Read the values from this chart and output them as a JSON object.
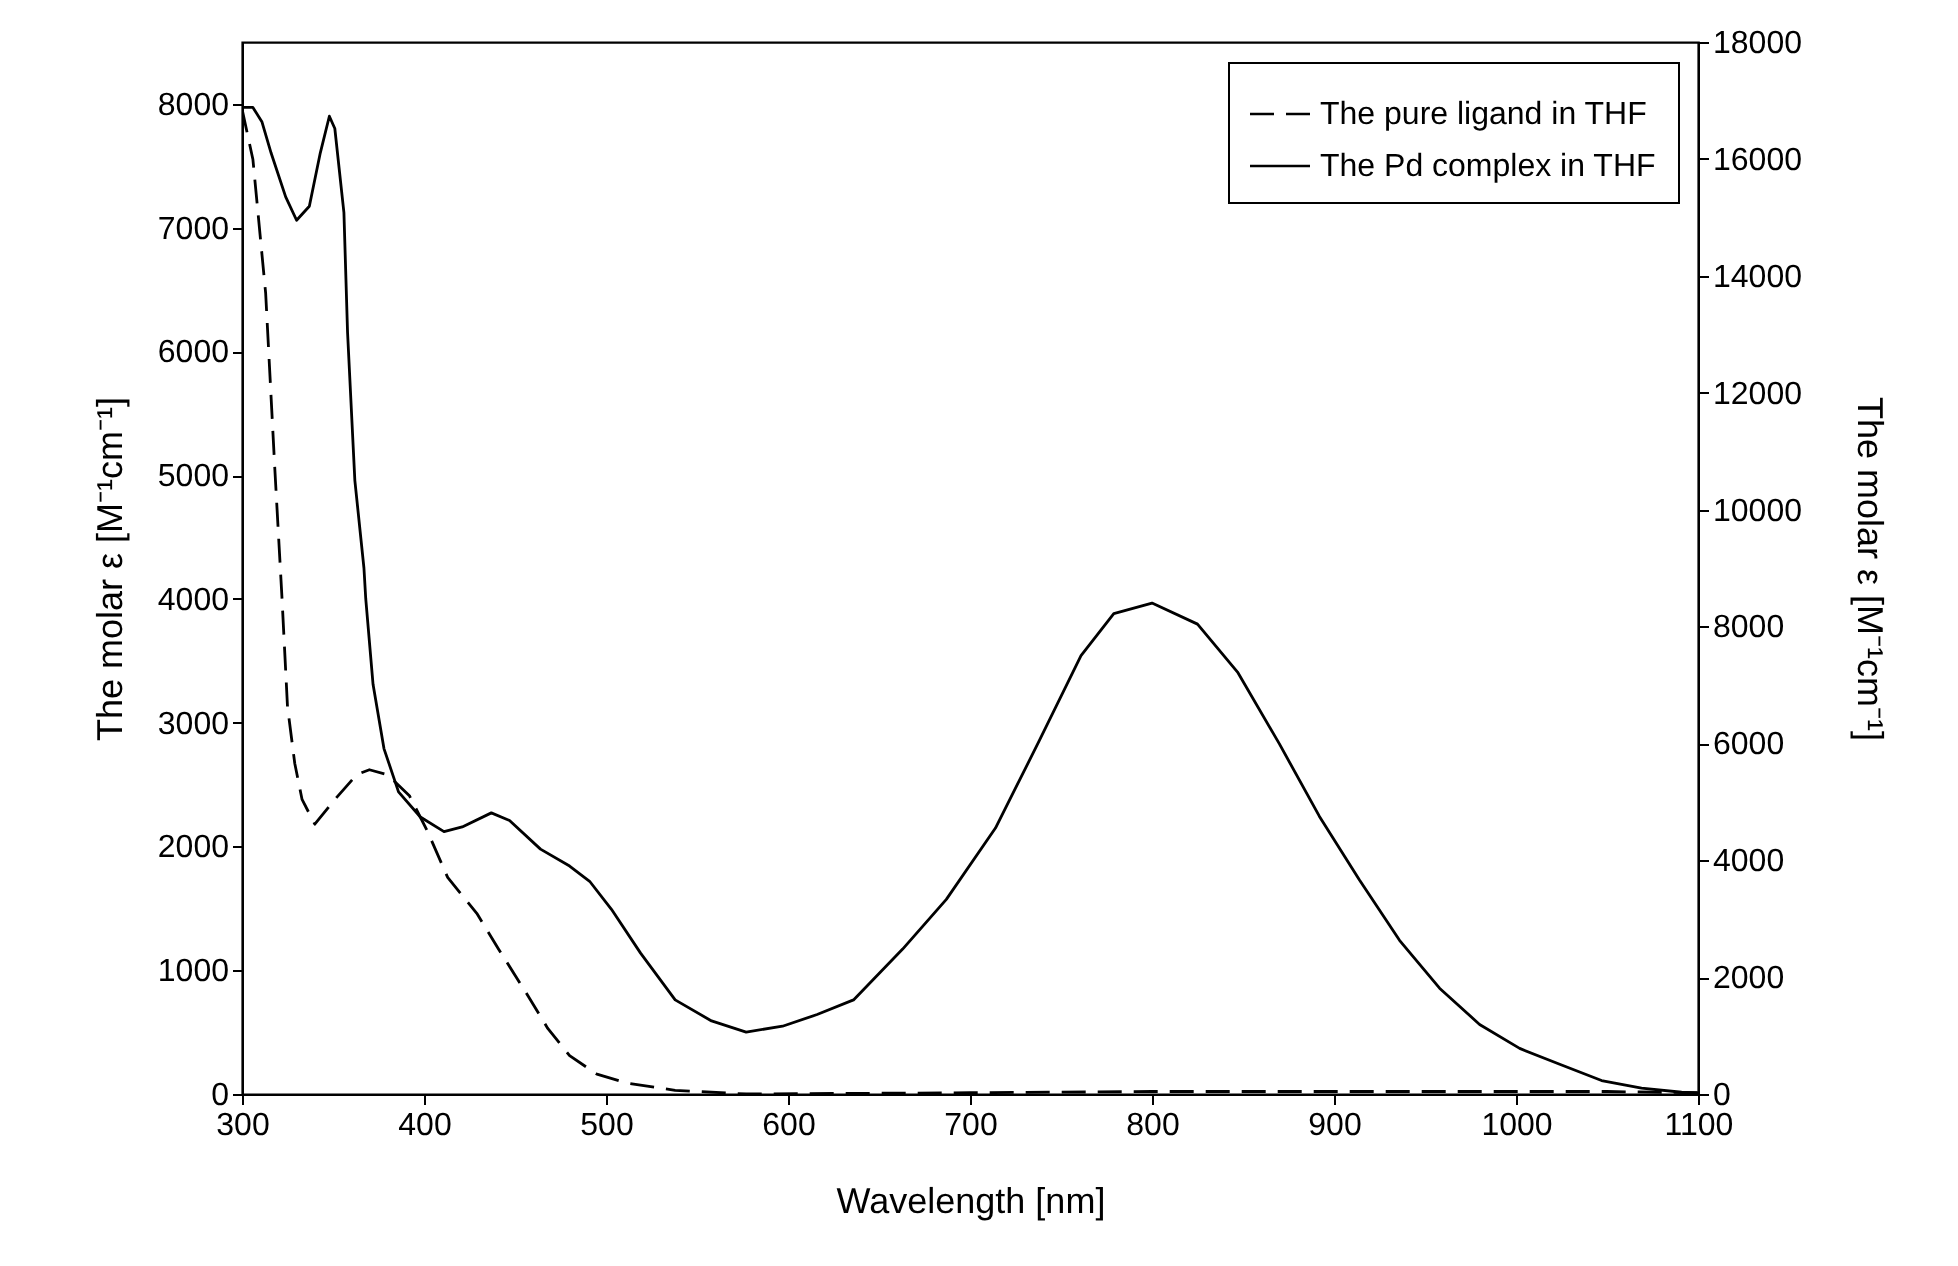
{
  "chart_data": {
    "type": "line",
    "xlabel": "Wavelength [nm]",
    "ylabel": "The molar ε [M⁻¹cm⁻¹]",
    "y2label": "The molar ε [M⁻¹cm⁻¹]",
    "xlim": [
      300,
      1100
    ],
    "xticks": [
      300,
      400,
      500,
      600,
      700,
      800,
      900,
      1000,
      1100
    ],
    "ylim": [
      0,
      8500
    ],
    "yticks": [
      0,
      1000,
      2000,
      3000,
      4000,
      5000,
      6000,
      7000,
      8000
    ],
    "y2lim": [
      0,
      18000
    ],
    "y2ticks": [
      0,
      2000,
      4000,
      6000,
      8000,
      10000,
      12000,
      14000,
      16000,
      18000
    ],
    "grid": false,
    "legend": "top right",
    "marker": "none",
    "series": [
      {
        "name": "The pure ligand in THF",
        "color": "#000000",
        "line_style": "dashed",
        "x": [
          300,
          306,
          313,
          318,
          322,
          325,
          329,
          333,
          340,
          351,
          363,
          370,
          380,
          392,
          402,
          413,
          429,
          441,
          456,
          468,
          480,
          495,
          511,
          538,
          577,
          700,
          800,
          900,
          1000,
          1050,
          1100
        ],
        "values": [
          7960,
          7550,
          6470,
          5060,
          4000,
          3130,
          2670,
          2380,
          2180,
          2380,
          2580,
          2620,
          2580,
          2410,
          2120,
          1750,
          1460,
          1170,
          820,
          530,
          310,
          160,
          90,
          30,
          0,
          10,
          20,
          20,
          20,
          20,
          10
        ]
      },
      {
        "name": "The Pd complex in THF",
        "color": "#000000",
        "line_style": "solid",
        "axis": "y2",
        "x": [
          301,
          306,
          311,
          316,
          324,
          330,
          337,
          343,
          348,
          351,
          356,
          358,
          362,
          367,
          368,
          372,
          378,
          386,
          398,
          411,
          421,
          437,
          447,
          464,
          480,
          491,
          503,
          519,
          538,
          558,
          577,
          597,
          616,
          636,
          663,
          687,
          714,
          738,
          761,
          779,
          800,
          825,
          847,
          870,
          892,
          914,
          936,
          958,
          980,
          1002,
          1024,
          1047,
          1069,
          1091,
          1100
        ],
        "values": [
          16880,
          16880,
          16630,
          16100,
          15350,
          14950,
          15190,
          16100,
          16730,
          16520,
          15080,
          13030,
          10500,
          9000,
          8470,
          7010,
          5910,
          5170,
          4740,
          4490,
          4570,
          4810,
          4680,
          4190,
          3900,
          3640,
          3160,
          2410,
          1610,
          1250,
          1060,
          1160,
          1360,
          1610,
          2480,
          3330,
          4550,
          6040,
          7500,
          8220,
          8400,
          8040,
          7220,
          5990,
          4750,
          3660,
          2630,
          1810,
          1190,
          780,
          510,
          230,
          100,
          30,
          20
        ]
      }
    ]
  }
}
